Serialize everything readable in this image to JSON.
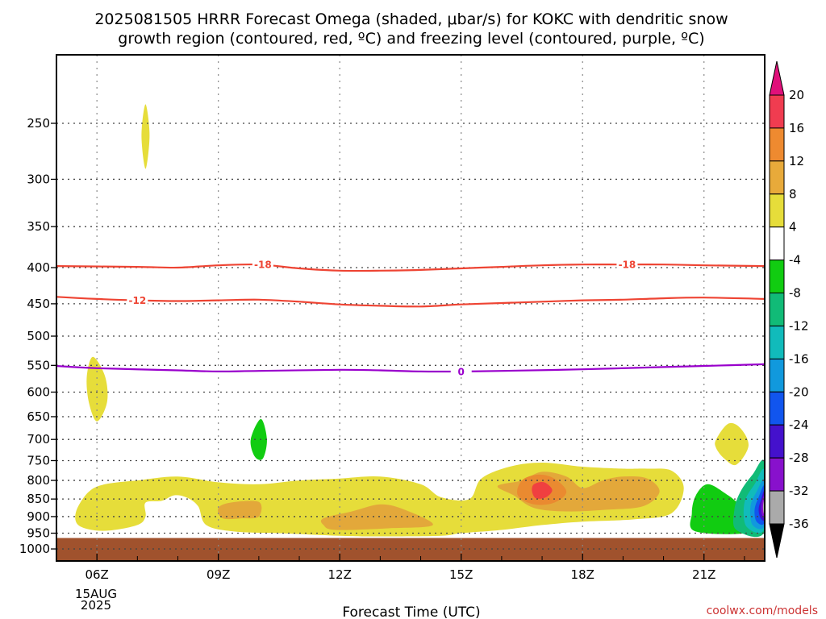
{
  "title": {
    "line1": "2025081505 HRRR Forecast Omega (shaded, μbar/s) for KOKC with dendritic snow",
    "line2": "growth region (contoured, red, ºC) and freezing level (contoured, purple, ºC)"
  },
  "credit": "coolwx.com/models",
  "chart_data": {
    "type": "time-height contour",
    "xlabel": "Forecast Time (UTC)",
    "ylabel": "",
    "x_ticks": [
      "06Z",
      "09Z",
      "12Z",
      "15Z",
      "18Z",
      "21Z"
    ],
    "x_date_label": [
      "15AUG",
      "2025"
    ],
    "x_range_hours": [
      5,
      22.5
    ],
    "y_ticks": [
      250,
      300,
      350,
      400,
      450,
      500,
      550,
      600,
      650,
      700,
      750,
      800,
      850,
      900,
      950,
      1000
    ],
    "y_range_hPa": [
      200,
      1040
    ],
    "y_scale": "log-pressure (inverted)",
    "grid": true,
    "ground_level_hPa": 965,
    "colors": {
      "ground": "#a0522d",
      "omega_4_8": "#e6dd3a",
      "omega_8_12": "#e3a83a",
      "omega_12_16": "#ea8a30",
      "omega_16_20": "#f04040",
      "omega_m4_m8": "#11cc11",
      "dgz": "#ee4433",
      "freezing": "#9900cc"
    },
    "colorbar": {
      "labels": [
        "20",
        "16",
        "12",
        "8",
        "4",
        "-4",
        "-8",
        "-12",
        "-16",
        "-20",
        "-24",
        "-28",
        "-32",
        "-36"
      ],
      "colors": [
        "#f03c50",
        "#ee8a30",
        "#e8aa3a",
        "#e6dd3a",
        "#ffffff",
        "#11cc11",
        "#11bb77",
        "#11bbbb",
        "#1199dd",
        "#1155ee",
        "#4411cc",
        "#8811cc",
        "#aaaaaa"
      ],
      "top_arrow_color": "#e0107a",
      "bottom_arrow_color": "#000000"
    },
    "contours": [
      {
        "label": "-18",
        "color": "#ee4433",
        "points": [
          [
            5,
            398
          ],
          [
            7,
            399
          ],
          [
            8,
            400
          ],
          [
            9,
            397
          ],
          [
            10,
            396
          ],
          [
            11,
            401
          ],
          [
            12,
            404
          ],
          [
            13,
            404
          ],
          [
            14,
            403
          ],
          [
            15,
            401
          ],
          [
            16,
            399
          ],
          [
            17,
            397
          ],
          [
            18,
            396
          ],
          [
            19,
            396
          ],
          [
            20,
            396
          ],
          [
            21,
            397
          ],
          [
            22.5,
            398
          ]
        ],
        "label_at": [
          [
            10.1,
            396
          ],
          [
            19.1,
            396
          ]
        ]
      },
      {
        "label": "-12",
        "color": "#ee4433",
        "points": [
          [
            5,
            440
          ],
          [
            6,
            443
          ],
          [
            7,
            445
          ],
          [
            8,
            446
          ],
          [
            9,
            445
          ],
          [
            10,
            444
          ],
          [
            11,
            447
          ],
          [
            12,
            451
          ],
          [
            13,
            453
          ],
          [
            14,
            454
          ],
          [
            15,
            451
          ],
          [
            16,
            449
          ],
          [
            17,
            447
          ],
          [
            18,
            445
          ],
          [
            19,
            444
          ],
          [
            20,
            442
          ],
          [
            21,
            441
          ],
          [
            22.5,
            443
          ]
        ],
        "label_at": [
          [
            7.0,
            445
          ]
        ]
      },
      {
        "label": "0",
        "color": "#9900cc",
        "points": [
          [
            5,
            551
          ],
          [
            6,
            555
          ],
          [
            8,
            559
          ],
          [
            9,
            561
          ],
          [
            10,
            560
          ],
          [
            12,
            558
          ],
          [
            13,
            559
          ],
          [
            14,
            561
          ],
          [
            15,
            561
          ],
          [
            16,
            560
          ],
          [
            18,
            557
          ],
          [
            20,
            553
          ],
          [
            21,
            551
          ],
          [
            22.5,
            548
          ]
        ],
        "label_at": [
          [
            15,
            561
          ]
        ]
      }
    ],
    "omega_regions": [
      {
        "level": "4 to 8",
        "fill": "#e6dd3a",
        "points": [
          [
            7.2,
            235
          ],
          [
            7.3,
            260
          ],
          [
            7.2,
            290
          ],
          [
            7.1,
            260
          ]
        ]
      },
      {
        "level": "4 to 8",
        "fill": "#e6dd3a",
        "points": [
          [
            5.9,
            535
          ],
          [
            6.2,
            570
          ],
          [
            6.25,
            620
          ],
          [
            6.0,
            660
          ],
          [
            5.8,
            620
          ],
          [
            5.75,
            570
          ]
        ]
      },
      {
        "level": "4 to 8",
        "fill": "#e6dd3a",
        "points": [
          [
            21.3,
            700
          ],
          [
            21.6,
            665
          ],
          [
            21.9,
            675
          ],
          [
            22.1,
            715
          ],
          [
            21.8,
            760
          ],
          [
            21.5,
            745
          ],
          [
            21.3,
            720
          ]
        ]
      },
      {
        "level": "4 to 8",
        "fill": "#e6dd3a",
        "points": [
          [
            5.5,
            880
          ],
          [
            5.8,
            830
          ],
          [
            6.2,
            810
          ],
          [
            7,
            800
          ],
          [
            8,
            790
          ],
          [
            9,
            805
          ],
          [
            10,
            810
          ],
          [
            11,
            800
          ],
          [
            12,
            795
          ],
          [
            13,
            790
          ],
          [
            14,
            810
          ],
          [
            14.5,
            845
          ],
          [
            15.2,
            850
          ],
          [
            15.5,
            795
          ],
          [
            16.2,
            765
          ],
          [
            17,
            755
          ],
          [
            18,
            765
          ],
          [
            19,
            770
          ],
          [
            19.6,
            770
          ],
          [
            20.2,
            775
          ],
          [
            20.5,
            820
          ],
          [
            20.2,
            890
          ],
          [
            19.3,
            908
          ],
          [
            18,
            915
          ],
          [
            17,
            925
          ],
          [
            16,
            940
          ],
          [
            15,
            950
          ],
          [
            14.5,
            958
          ],
          [
            13,
            960
          ],
          [
            12,
            958
          ],
          [
            10.5,
            950
          ],
          [
            9.4,
            945
          ],
          [
            8.7,
            925
          ],
          [
            8.5,
            870
          ],
          [
            8.2,
            845
          ],
          [
            7.9,
            840
          ],
          [
            7.6,
            855
          ],
          [
            7.2,
            860
          ],
          [
            7.2,
            900
          ],
          [
            7,
            925
          ],
          [
            6.3,
            942
          ],
          [
            5.8,
            938
          ],
          [
            5.5,
            920
          ]
        ]
      },
      {
        "level": "8 to 12",
        "fill": "#e3a83a",
        "points": [
          [
            9.0,
            875
          ],
          [
            9.3,
            860
          ],
          [
            10.0,
            858
          ],
          [
            10.0,
            900
          ],
          [
            9.6,
            905
          ],
          [
            9.1,
            905
          ]
        ]
      },
      {
        "level": "8 to 12",
        "fill": "#e3a83a",
        "points": [
          [
            11.6,
            905
          ],
          [
            12.3,
            885
          ],
          [
            13.0,
            865
          ],
          [
            13.6,
            880
          ],
          [
            14.3,
            925
          ],
          [
            13.2,
            935
          ],
          [
            11.9,
            940
          ],
          [
            11.6,
            925
          ]
        ]
      },
      {
        "level": "8 to 12",
        "fill": "#e3a83a",
        "points": [
          [
            16.5,
            800
          ],
          [
            17.0,
            778
          ],
          [
            17.6,
            790
          ],
          [
            18,
            820
          ],
          [
            18.5,
            800
          ],
          [
            19,
            790
          ],
          [
            19.6,
            795
          ],
          [
            19.9,
            830
          ],
          [
            19.5,
            870
          ],
          [
            18.6,
            880
          ],
          [
            17.6,
            885
          ],
          [
            16.8,
            875
          ],
          [
            16.3,
            840
          ],
          [
            15.9,
            815
          ]
        ]
      },
      {
        "level": "12 to 16",
        "fill": "#ea8a30",
        "points": [
          [
            16.5,
            800
          ],
          [
            16.9,
            785
          ],
          [
            17.3,
            795
          ],
          [
            17.6,
            830
          ],
          [
            17.3,
            860
          ],
          [
            16.8,
            865
          ],
          [
            16.4,
            840
          ]
        ]
      },
      {
        "level": "16 to 20",
        "fill": "#f04040",
        "points": [
          [
            16.8,
            810
          ],
          [
            17.05,
            805
          ],
          [
            17.25,
            825
          ],
          [
            17.1,
            845
          ],
          [
            16.85,
            848
          ],
          [
            16.75,
            828
          ]
        ]
      },
      {
        "level": "-4 to -8",
        "fill": "#11cc11",
        "points": [
          [
            10.05,
            655
          ],
          [
            10.2,
            700
          ],
          [
            10.1,
            745
          ],
          [
            9.9,
            740
          ],
          [
            9.8,
            700
          ]
        ]
      },
      {
        "level": "-4 to -8",
        "fill": "#11cc11",
        "points": [
          [
            20.8,
            945
          ],
          [
            20.7,
            890
          ],
          [
            20.8,
            840
          ],
          [
            21.1,
            810
          ],
          [
            21.6,
            840
          ],
          [
            21.9,
            865
          ],
          [
            22.2,
            875
          ],
          [
            22.2,
            945
          ]
        ]
      },
      {
        "level": "-8 to -12",
        "fill": "#11bb77",
        "points": [
          [
            22.5,
            755
          ],
          [
            22.2,
            785
          ],
          [
            21.9,
            830
          ],
          [
            21.75,
            880
          ],
          [
            21.8,
            940
          ],
          [
            22.5,
            945
          ]
        ]
      },
      {
        "level": "-12 to -16",
        "fill": "#11bbbb",
        "points": [
          [
            22.5,
            775
          ],
          [
            22.25,
            810
          ],
          [
            22.0,
            860
          ],
          [
            22.05,
            930
          ],
          [
            22.5,
            935
          ]
        ]
      },
      {
        "level": "-16 to -20",
        "fill": "#1199dd",
        "points": [
          [
            22.5,
            800
          ],
          [
            22.3,
            830
          ],
          [
            22.15,
            870
          ],
          [
            22.2,
            925
          ],
          [
            22.5,
            925
          ]
        ]
      },
      {
        "level": "-20 to -24",
        "fill": "#1155ee",
        "points": [
          [
            22.5,
            815
          ],
          [
            22.35,
            845
          ],
          [
            22.25,
            880
          ],
          [
            22.3,
            915
          ],
          [
            22.5,
            915
          ]
        ]
      },
      {
        "level": "-24 to -28",
        "fill": "#4411cc",
        "points": [
          [
            22.5,
            828
          ],
          [
            22.4,
            855
          ],
          [
            22.35,
            880
          ],
          [
            22.4,
            905
          ],
          [
            22.5,
            905
          ]
        ]
      },
      {
        "level": "-28 to -32",
        "fill": "#8811cc",
        "points": [
          [
            22.5,
            838
          ],
          [
            22.43,
            860
          ],
          [
            22.42,
            885
          ],
          [
            22.45,
            898
          ],
          [
            22.5,
            898
          ]
        ]
      },
      {
        "level": "-32 to -36",
        "fill": "#aaaaaa",
        "points": [
          [
            22.5,
            848
          ],
          [
            22.46,
            868
          ],
          [
            22.47,
            888
          ],
          [
            22.5,
            890
          ]
        ]
      }
    ]
  }
}
